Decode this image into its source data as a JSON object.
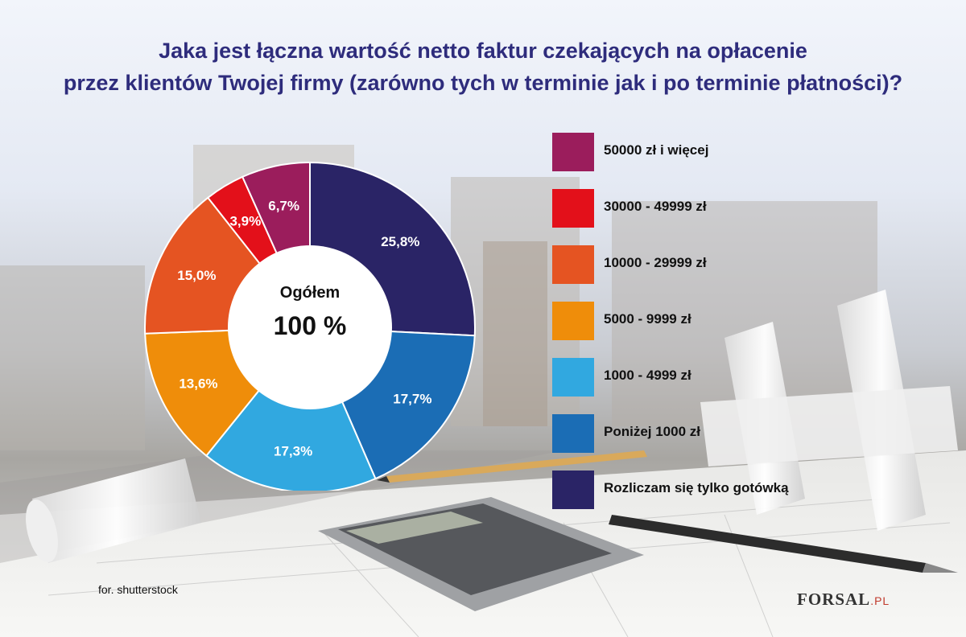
{
  "title": {
    "line1": "Jaka jest łączna wartość netto faktur czekających na opłacenie",
    "line2": "przez klientów Twojej firmy (zarówno tych w terminie jak i po terminie płatności)?"
  },
  "center": {
    "label": "Ogółem",
    "value": "100 %"
  },
  "credit": "for. shutterstock",
  "logo": {
    "main": "FORSAL",
    "suffix": ".PL"
  },
  "chart_data": {
    "type": "pie",
    "title": "Jaka jest łączna wartość netto faktur czekających na opłacenie przez klientów Twojej firmy (zarówno tych w terminie jak i po terminie płatności)?",
    "legend_position": "right",
    "slices": [
      {
        "label": "Rozliczam się tylko gotówką",
        "value": 25.8,
        "value_label": "25,8%",
        "color": "#2a2466"
      },
      {
        "label": "Poniżej 1000 zł",
        "value": 17.7,
        "value_label": "17,7%",
        "color": "#1b6db5"
      },
      {
        "label": "1000 - 4999 zł",
        "value": 17.3,
        "value_label": "17,3%",
        "color": "#31a8e0"
      },
      {
        "label": "5000 - 9999 zł",
        "value": 13.6,
        "value_label": "13,6%",
        "color": "#ef8d0a"
      },
      {
        "label": "10000 - 29999 zł",
        "value": 15.0,
        "value_label": "15,0%",
        "color": "#e55422"
      },
      {
        "label": "30000 - 49999 zł",
        "value": 3.9,
        "value_label": "3,9%",
        "color": "#e3101a"
      },
      {
        "label": "50000 zł i więcej",
        "value": 6.7,
        "value_label": "6,7%",
        "color": "#9b1d5c"
      }
    ],
    "legend_order": [
      "50000 zł i więcej",
      "30000 - 49999 zł",
      "10000 - 29999 zł",
      "5000 - 9999 zł",
      "1000 - 4999 zł",
      "Poniżej 1000 zł",
      "Rozliczam się tylko gotówką"
    ]
  }
}
